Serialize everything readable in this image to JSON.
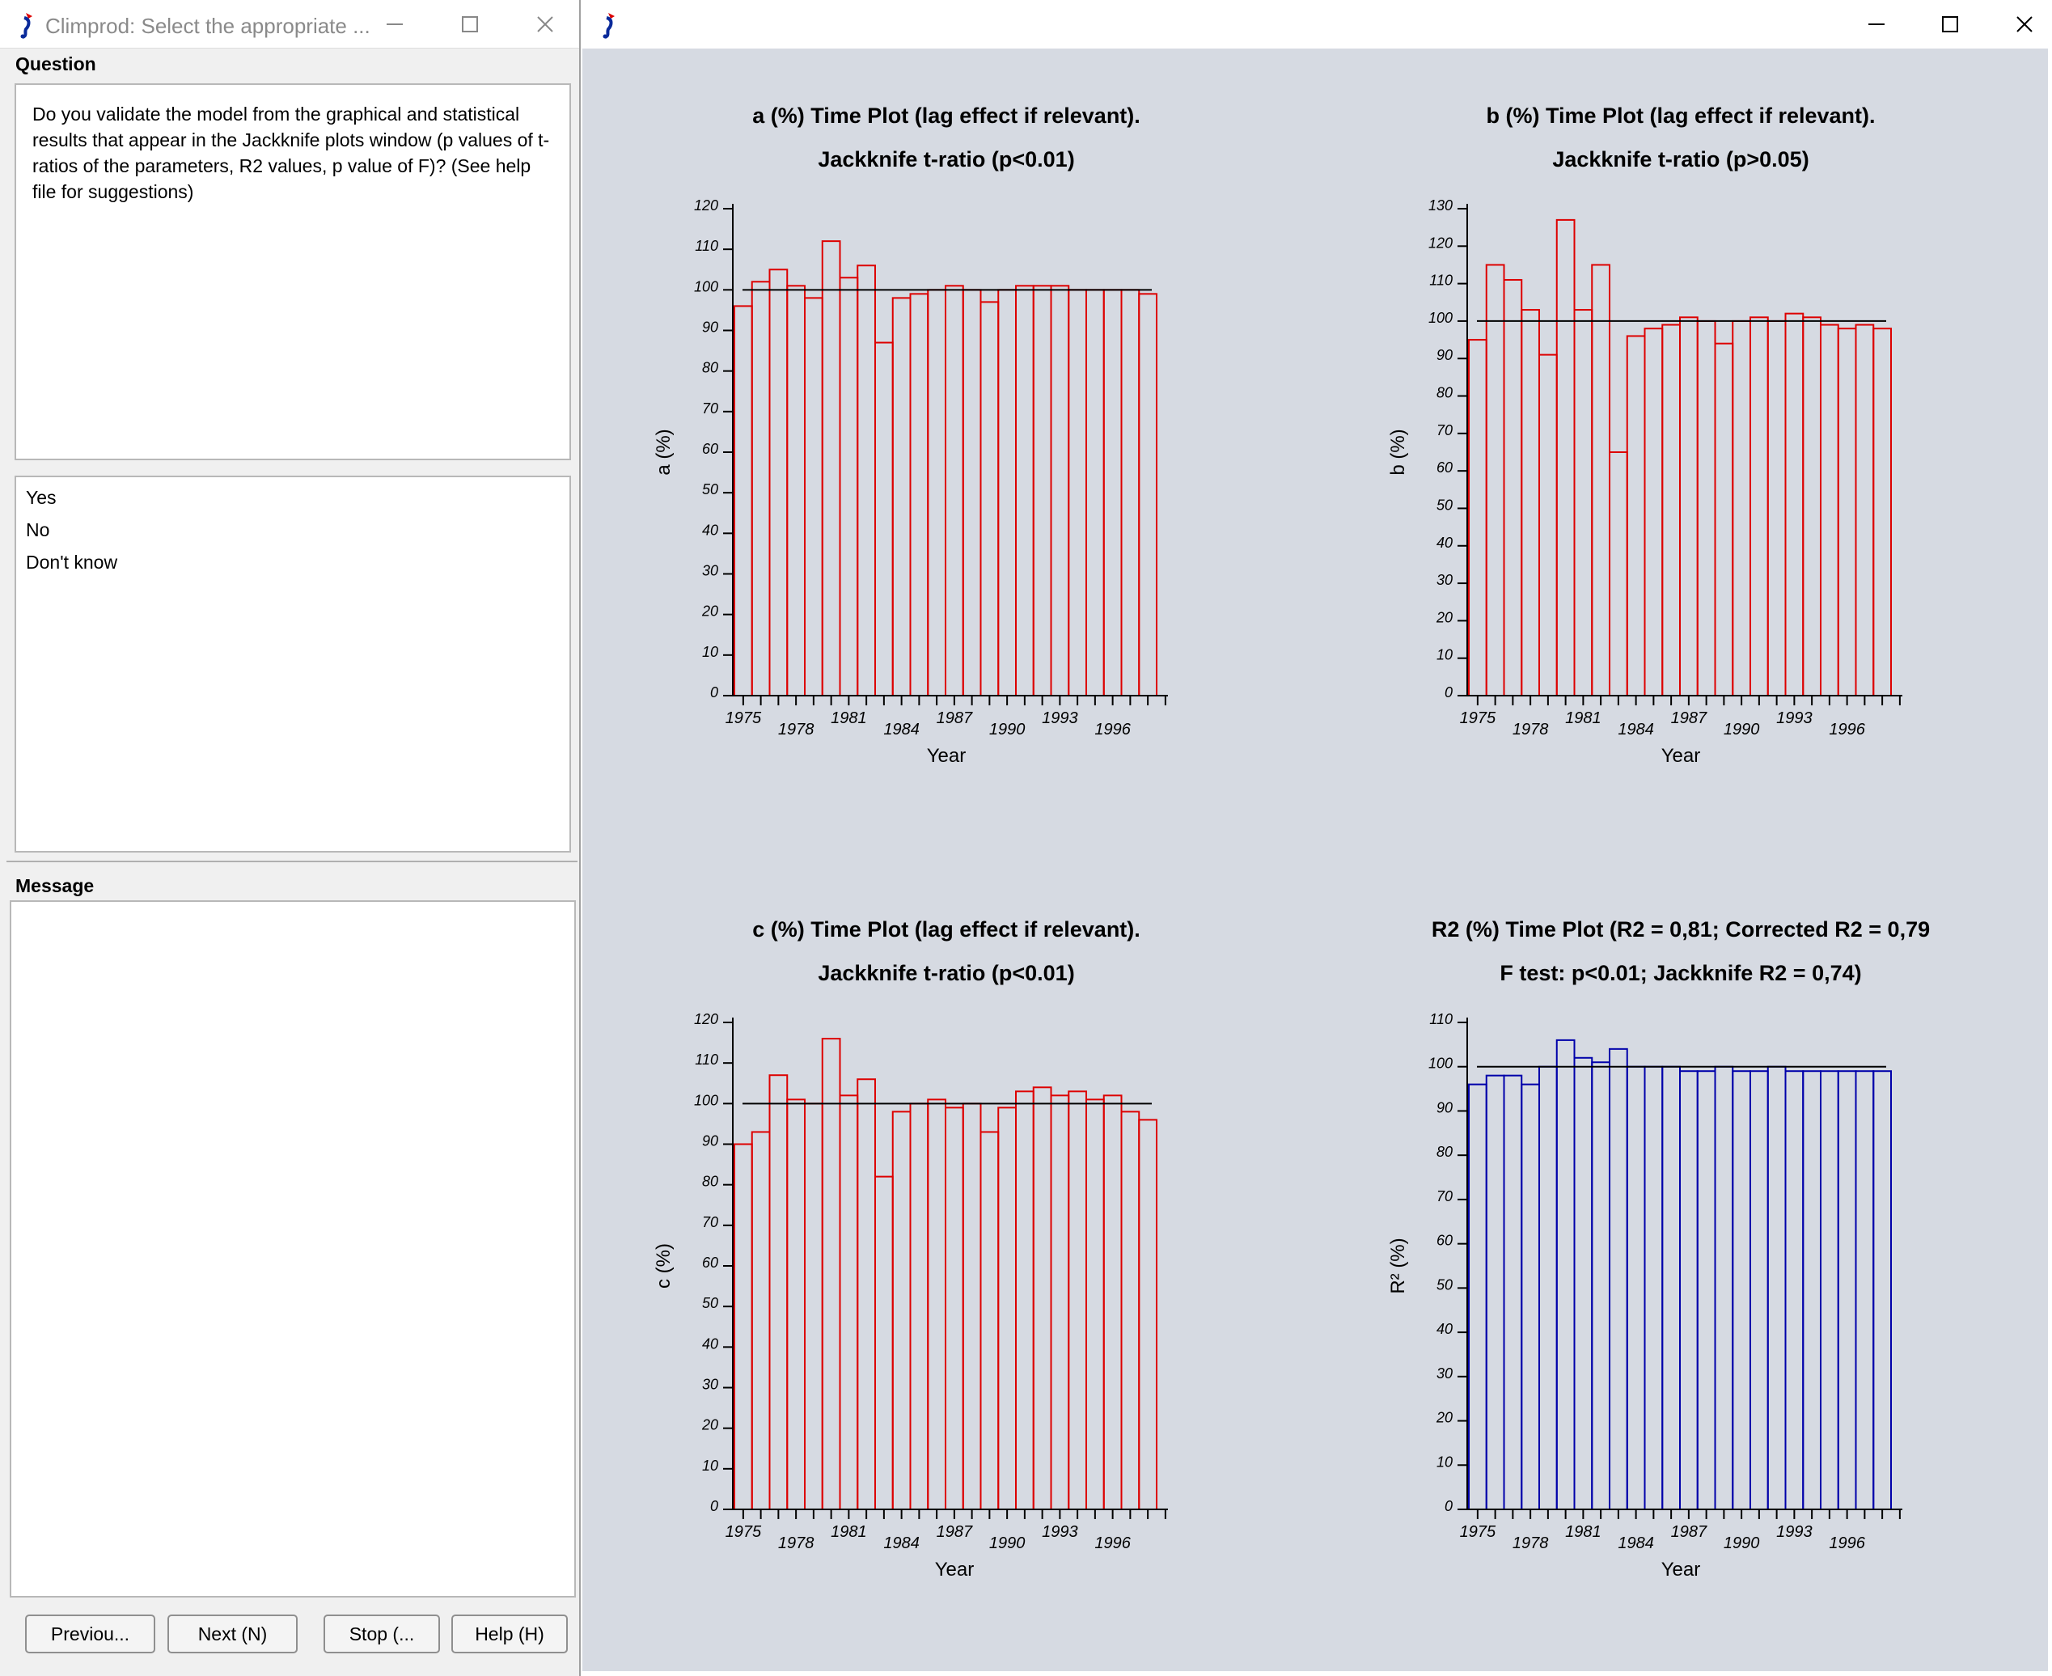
{
  "left_window": {
    "title": "Climprod: Select the appropriate ...",
    "question_label": "Question",
    "question_text": "Do you validate the model from the graphical and statistical results that appear in the Jackknife plots window (p values of t-ratios of the parameters, R2 values, p value of F)? (See help file for suggestions)",
    "answers": [
      "Yes",
      "No",
      "Don't know"
    ],
    "message_label": "Message",
    "message_text": "",
    "buttons": {
      "previous": "Previou...",
      "next": "Next (N)",
      "stop": "Stop (...",
      "help": "Help (H)"
    }
  },
  "right_window": {
    "title": ""
  },
  "icons": [
    "app-icon",
    "minimize-icon",
    "maximize-icon",
    "close-icon"
  ],
  "colors": {
    "red_series": "#dd0000",
    "blue_series": "#0000aa",
    "plot_background": "#d6dae2"
  },
  "chart_data": [
    {
      "id": "a",
      "type": "bar",
      "title": "a (%) Time Plot (lag effect if relevant).",
      "subtitle": "Jackknife t-ratio  (p<0.01)",
      "xlabel": "Year",
      "ylabel": "a (%)",
      "ylim": [
        0,
        120
      ],
      "ytick_step": 10,
      "x": [
        1975,
        1976,
        1977,
        1978,
        1979,
        1980,
        1981,
        1982,
        1983,
        1984,
        1985,
        1986,
        1987,
        1988,
        1989,
        1990,
        1991,
        1992,
        1993,
        1994,
        1995,
        1996,
        1997,
        1998
      ],
      "xtick_labels": [
        "1975",
        "1978",
        "1981",
        "1984",
        "1987",
        "1990",
        "1993",
        "1996"
      ],
      "values": [
        96,
        102,
        105,
        101,
        98,
        112,
        103,
        106,
        87,
        98,
        99,
        100,
        101,
        100,
        97,
        100,
        101,
        101,
        101,
        100,
        100,
        100,
        100,
        99
      ],
      "reference_line": 100,
      "color": "#dd0000",
      "grid": false
    },
    {
      "id": "b",
      "type": "bar",
      "title": "b (%) Time Plot (lag effect if relevant).",
      "subtitle": "Jackknife t-ratio  (p>0.05)",
      "xlabel": "Year",
      "ylabel": "b (%)",
      "ylim": [
        0,
        130
      ],
      "ytick_step": 10,
      "x": [
        1975,
        1976,
        1977,
        1978,
        1979,
        1980,
        1981,
        1982,
        1983,
        1984,
        1985,
        1986,
        1987,
        1988,
        1989,
        1990,
        1991,
        1992,
        1993,
        1994,
        1995,
        1996,
        1997,
        1998
      ],
      "xtick_labels": [
        "1975",
        "1978",
        "1981",
        "1984",
        "1987",
        "1990",
        "1993",
        "1996"
      ],
      "values": [
        95,
        115,
        111,
        103,
        91,
        127,
        103,
        115,
        65,
        96,
        98,
        99,
        101,
        100,
        94,
        100,
        101,
        100,
        102,
        101,
        99,
        98,
        99,
        98
      ],
      "reference_line": 100,
      "color": "#dd0000",
      "grid": false
    },
    {
      "id": "c",
      "type": "bar",
      "title": "c (%) Time Plot (lag effect if relevant).",
      "subtitle": "Jackknife t-ratio  (p<0.01)",
      "xlabel": "Year",
      "ylabel": "c (%)",
      "ylim": [
        0,
        120
      ],
      "ytick_step": 10,
      "x": [
        1975,
        1976,
        1977,
        1978,
        1979,
        1980,
        1981,
        1982,
        1983,
        1984,
        1985,
        1986,
        1987,
        1988,
        1989,
        1990,
        1991,
        1992,
        1993,
        1994,
        1995,
        1996,
        1997,
        1998
      ],
      "xtick_labels": [
        "1975",
        "1978",
        "1981",
        "1984",
        "1987",
        "1990",
        "1993",
        "1996"
      ],
      "values": [
        90,
        93,
        107,
        101,
        100,
        116,
        102,
        106,
        82,
        98,
        100,
        101,
        99,
        100,
        93,
        99,
        103,
        104,
        102,
        103,
        101,
        102,
        98,
        96
      ],
      "reference_line": 100,
      "color": "#dd0000",
      "grid": false
    },
    {
      "id": "r2",
      "type": "bar",
      "title": "R2 (%) Time Plot (R2 = 0,81; Corrected R2 = 0,79",
      "subtitle": "F test:  p<0.01; Jackknife R2 = 0,74)",
      "xlabel": "Year",
      "ylabel": "R² (%)",
      "ylim": [
        0,
        110
      ],
      "ytick_step": 10,
      "x": [
        1975,
        1976,
        1977,
        1978,
        1979,
        1980,
        1981,
        1982,
        1983,
        1984,
        1985,
        1986,
        1987,
        1988,
        1989,
        1990,
        1991,
        1992,
        1993,
        1994,
        1995,
        1996,
        1997,
        1998
      ],
      "xtick_labels": [
        "1975",
        "1978",
        "1981",
        "1984",
        "1987",
        "1990",
        "1993",
        "1996"
      ],
      "values": [
        96,
        98,
        98,
        96,
        100,
        106,
        102,
        101,
        104,
        100,
        100,
        100,
        99,
        99,
        100,
        99,
        99,
        100,
        99,
        99,
        99,
        99,
        99,
        99
      ],
      "reference_line": 100,
      "color": "#0000aa",
      "grid": false
    }
  ]
}
